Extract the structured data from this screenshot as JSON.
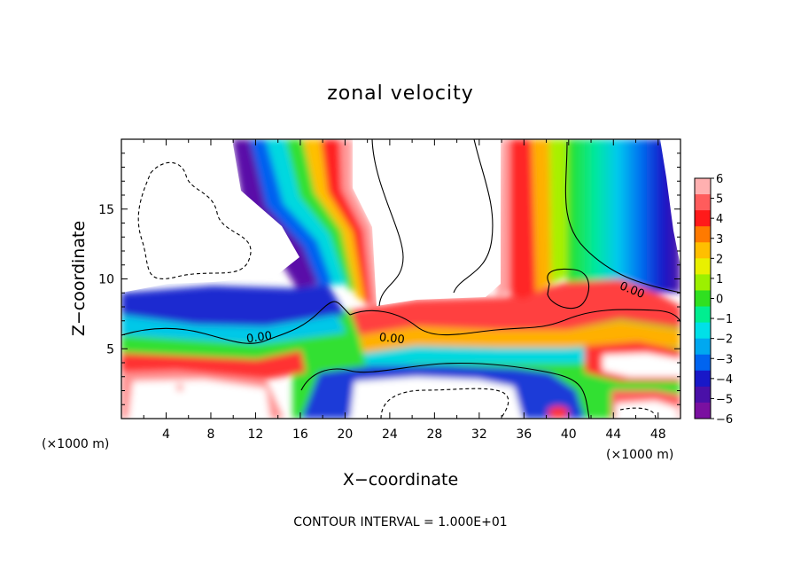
{
  "chart_data": {
    "type": "heatmap",
    "title": "zonal velocity",
    "xlabel": "X−coordinate",
    "ylabel": "Z−coordinate",
    "x_units_left": "(×1000 m)",
    "x_units_right": "(×1000 m)",
    "xlim": [
      0,
      50
    ],
    "ylim": [
      0,
      20
    ],
    "x_ticks": [
      4,
      8,
      12,
      16,
      20,
      24,
      28,
      32,
      36,
      40,
      44,
      48
    ],
    "y_ticks": [
      5,
      10,
      15
    ],
    "colorbar": {
      "ticks": [
        "6",
        "5",
        "4",
        "3",
        "2",
        "1",
        "0",
        "−1",
        "−2",
        "−3",
        "−4",
        "−5",
        "−6"
      ],
      "colors": [
        "#ffb0b0",
        "#ff5c5c",
        "#ff1a1a",
        "#ff7a00",
        "#ffbf00",
        "#e9f000",
        "#9cf000",
        "#30e020",
        "#00ee90",
        "#00e0e8",
        "#00a8f0",
        "#0064f0",
        "#1818c8",
        "#4a10a8",
        "#7a10a0"
      ]
    },
    "contour_labels": [
      "0.00",
      "0.00",
      "0.00"
    ],
    "footer": "CONTOUR INTERVAL = 1.000E+01"
  }
}
